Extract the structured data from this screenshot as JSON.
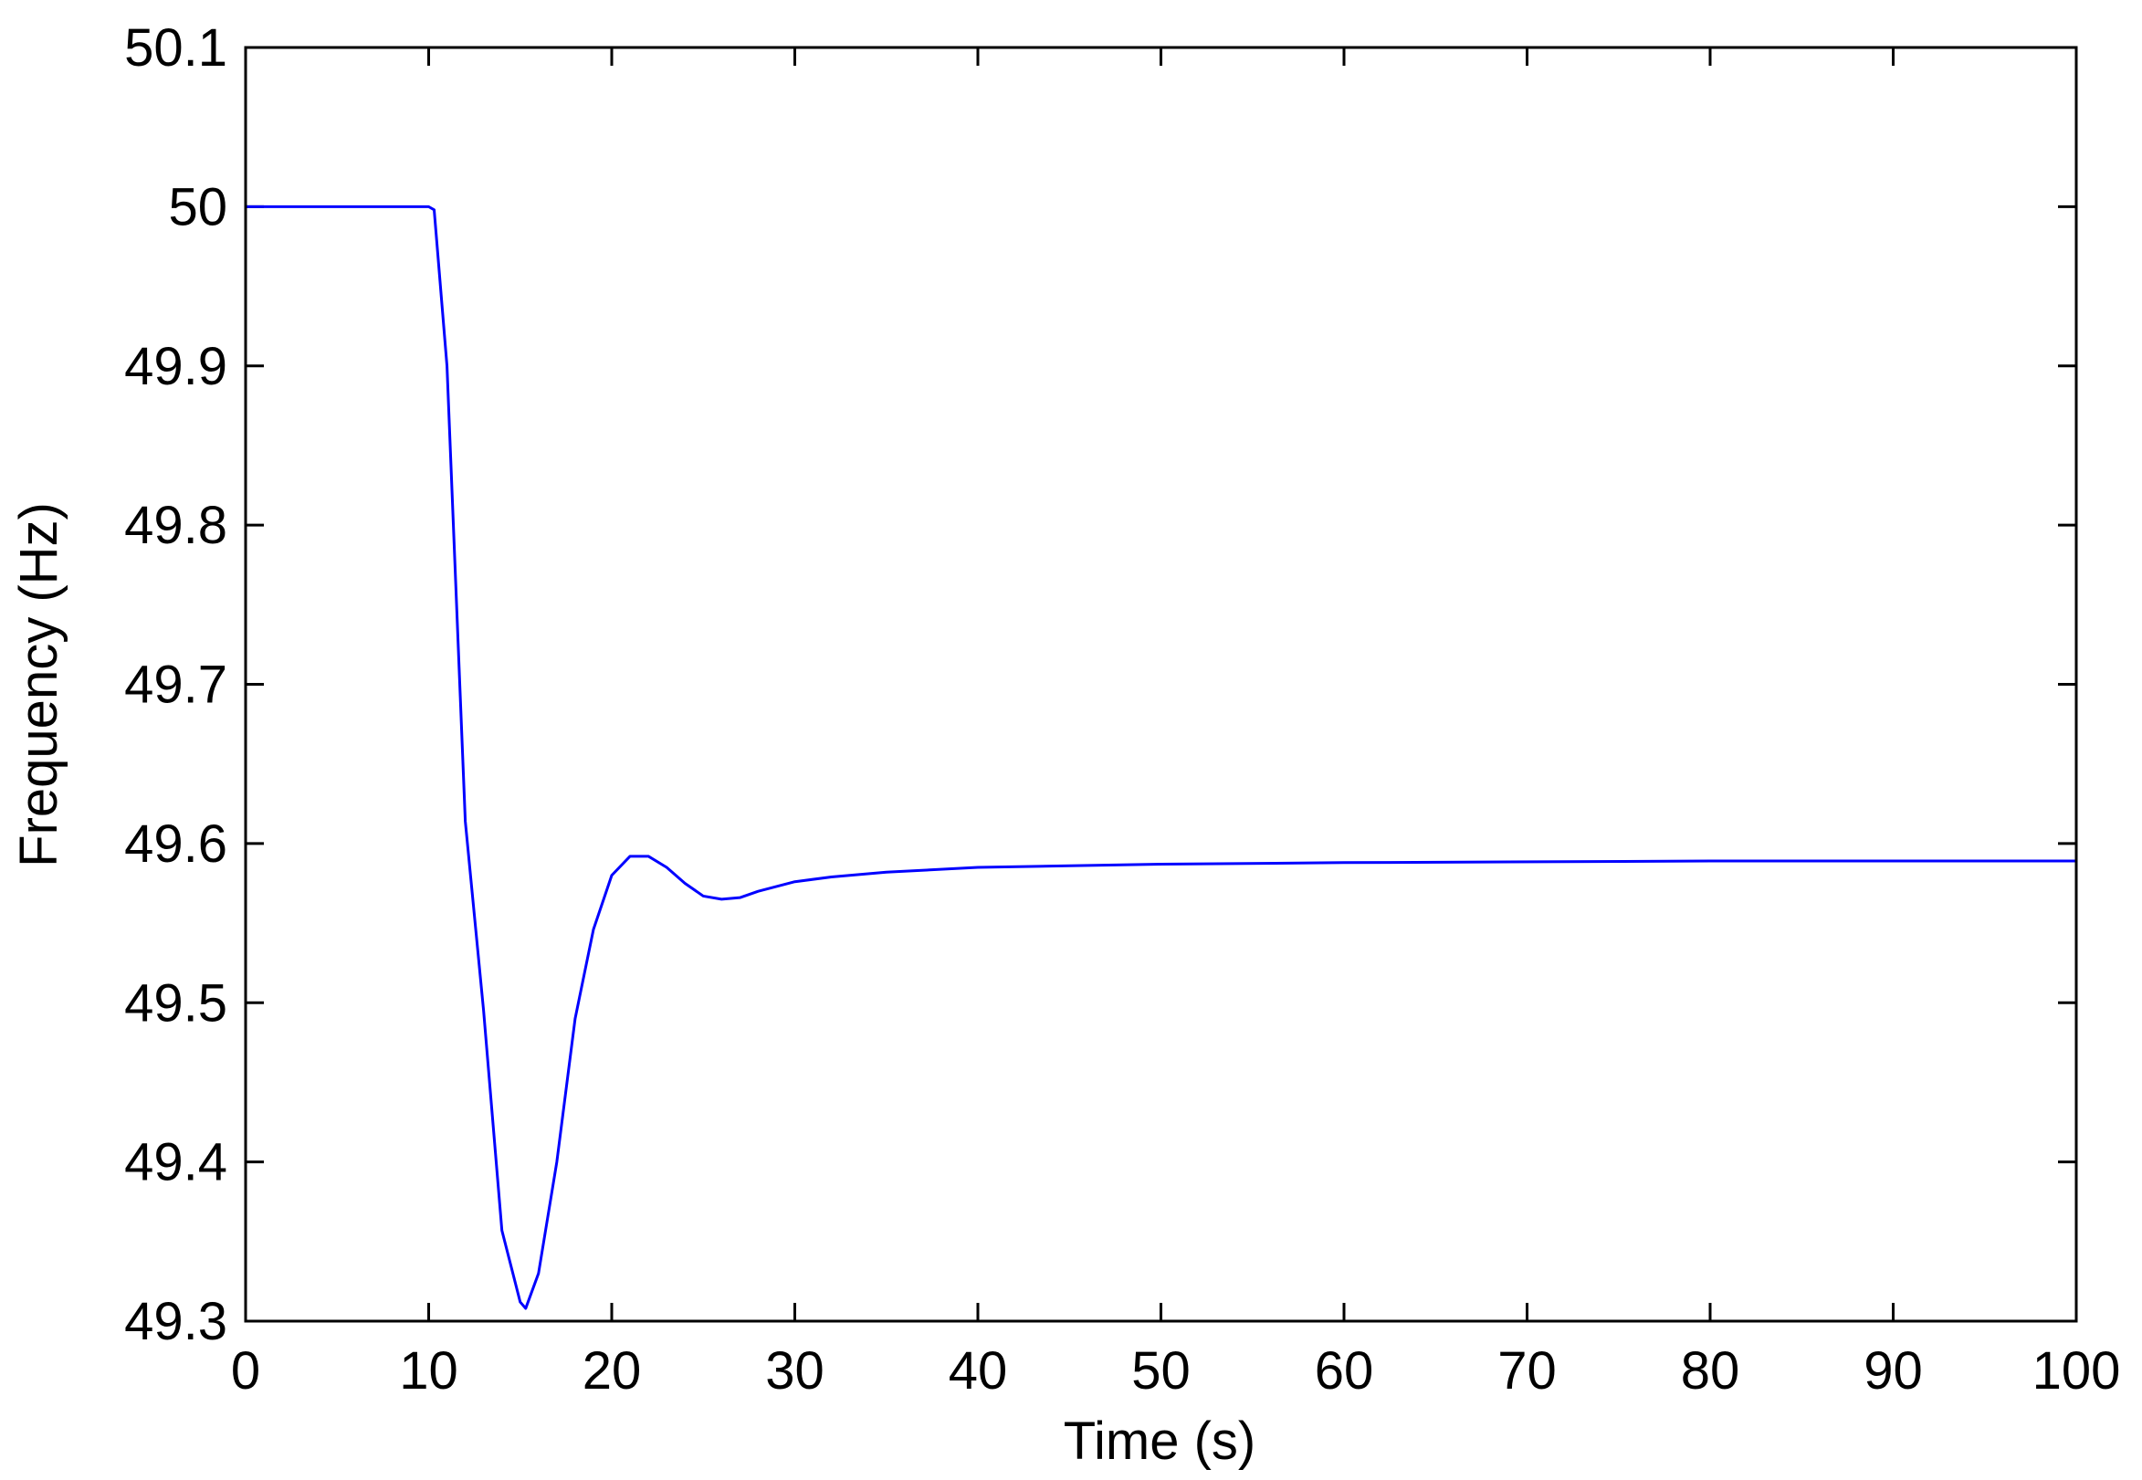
{
  "chart_data": {
    "type": "line",
    "x_label": "Time (s)",
    "y_label": "Frequency (Hz)",
    "x": [
      0,
      5,
      10,
      10.3,
      11,
      12,
      13,
      14,
      15,
      15.3,
      16,
      17,
      18,
      19,
      20,
      21,
      22,
      23,
      24,
      25,
      26,
      27,
      28,
      30,
      32,
      35,
      40,
      50,
      60,
      80,
      100
    ],
    "series": [
      {
        "color": "#0000ff",
        "values": [
          50,
          50,
          50,
          49.998,
          49.9,
          49.614,
          49.495,
          49.357,
          49.312,
          49.308,
          49.33,
          49.4,
          49.49,
          49.546,
          49.58,
          49.592,
          49.592,
          49.585,
          49.575,
          49.567,
          49.565,
          49.566,
          49.57,
          49.576,
          49.579,
          49.582,
          49.585,
          49.587,
          49.588,
          49.589,
          49.589
        ]
      }
    ],
    "xlim": [
      0,
      100
    ],
    "xticks": [
      0,
      10,
      20,
      30,
      40,
      50,
      60,
      70,
      80,
      90,
      100
    ],
    "ylim": [
      49.3,
      50.1
    ],
    "yticks": [
      49.3,
      49.4,
      49.5,
      49.6,
      49.7,
      49.8,
      49.9,
      50,
      50.1
    ]
  }
}
